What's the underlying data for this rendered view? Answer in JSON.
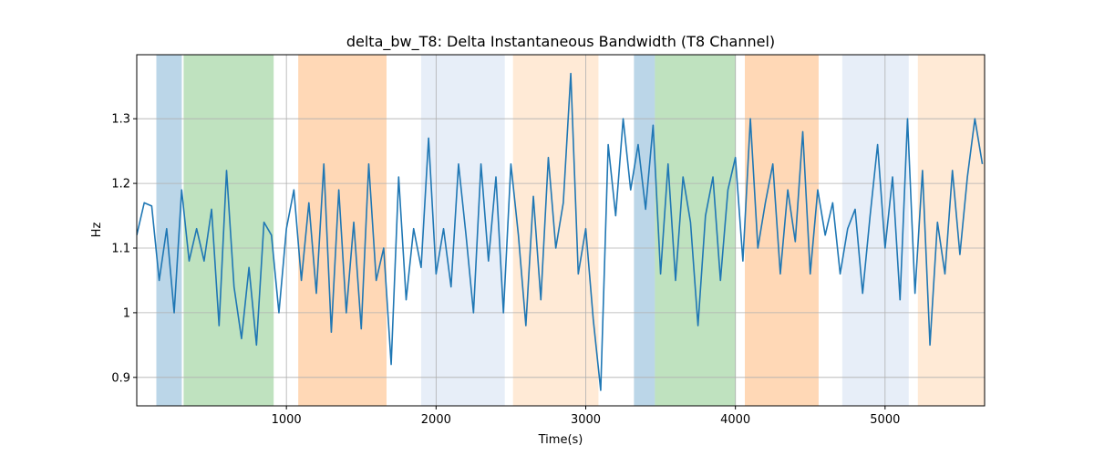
{
  "chart_data": {
    "type": "line",
    "title": "delta_bw_T8: Delta Instantaneous Bandwidth (T8 Channel)",
    "x_label": "Time(s)",
    "y_label": "Hz",
    "x": [
      0,
      50,
      100,
      150,
      200,
      250,
      300,
      350,
      400,
      450,
      500,
      550,
      600,
      650,
      700,
      750,
      800,
      850,
      900,
      950,
      1000,
      1050,
      1100,
      1150,
      1200,
      1250,
      1300,
      1350,
      1400,
      1450,
      1500,
      1550,
      1600,
      1650,
      1700,
      1750,
      1800,
      1850,
      1900,
      1950,
      2000,
      2050,
      2100,
      2150,
      2200,
      2250,
      2300,
      2350,
      2400,
      2450,
      2500,
      2550,
      2600,
      2650,
      2700,
      2750,
      2800,
      2850,
      2900,
      2950,
      3000,
      3050,
      3100,
      3150,
      3200,
      3250,
      3300,
      3350,
      3400,
      3450,
      3500,
      3550,
      3600,
      3650,
      3700,
      3750,
      3800,
      3850,
      3900,
      3950,
      4000,
      4050,
      4100,
      4150,
      4200,
      4250,
      4300,
      4350,
      4400,
      4450,
      4500,
      4550,
      4600,
      4650,
      4700,
      4750,
      4800,
      4850,
      4900,
      4950,
      5000,
      5050,
      5100,
      5150,
      5200,
      5250,
      5300,
      5350,
      5400,
      5450,
      5500,
      5550,
      5600,
      5650
    ],
    "series": [
      {
        "color": "#1f77b4",
        "values": [
          1.12,
          1.17,
          1.165,
          1.05,
          1.13,
          1.0,
          1.19,
          1.08,
          1.13,
          1.08,
          1.16,
          0.98,
          1.22,
          1.04,
          0.96,
          1.07,
          0.95,
          1.14,
          1.12,
          1.0,
          1.13,
          1.19,
          1.05,
          1.17,
          1.03,
          1.23,
          0.97,
          1.19,
          1.0,
          1.14,
          0.975,
          1.23,
          1.05,
          1.1,
          0.92,
          1.21,
          1.02,
          1.13,
          1.07,
          1.27,
          1.06,
          1.13,
          1.04,
          1.23,
          1.12,
          1.0,
          1.23,
          1.08,
          1.21,
          1.0,
          1.23,
          1.12,
          0.98,
          1.18,
          1.02,
          1.24,
          1.1,
          1.17,
          1.37,
          1.06,
          1.13,
          0.99,
          0.88,
          1.26,
          1.15,
          1.3,
          1.19,
          1.26,
          1.16,
          1.29,
          1.06,
          1.23,
          1.05,
          1.21,
          1.14,
          0.98,
          1.15,
          1.21,
          1.05,
          1.19,
          1.24,
          1.08,
          1.3,
          1.1,
          1.17,
          1.23,
          1.06,
          1.19,
          1.11,
          1.28,
          1.06,
          1.19,
          1.12,
          1.17,
          1.06,
          1.13,
          1.16,
          1.03,
          1.15,
          1.26,
          1.1,
          1.21,
          1.02,
          1.3,
          1.03,
          1.22,
          0.95,
          1.14,
          1.06,
          1.22,
          1.09,
          1.21,
          1.3,
          1.23
        ]
      }
    ],
    "spans": [
      {
        "start": 131,
        "end": 301,
        "color": "#1f77b4",
        "opacity": 0.3
      },
      {
        "start": 313,
        "end": 915,
        "color": "#2ca02c",
        "opacity": 0.3
      },
      {
        "start": 1079,
        "end": 1669,
        "color": "#ff7f0e",
        "opacity": 0.3
      },
      {
        "start": 1900,
        "end": 2459,
        "color": "#aec7e8",
        "opacity": 0.3
      },
      {
        "start": 2514,
        "end": 3085,
        "color": "#ffbb78",
        "opacity": 0.3
      },
      {
        "start": 3322,
        "end": 3462,
        "color": "#1f77b4",
        "opacity": 0.3
      },
      {
        "start": 3462,
        "end": 4003,
        "color": "#2ca02c",
        "opacity": 0.3
      },
      {
        "start": 4063,
        "end": 4556,
        "color": "#ff7f0e",
        "opacity": 0.3
      },
      {
        "start": 4714,
        "end": 5158,
        "color": "#aec7e8",
        "opacity": 0.3
      },
      {
        "start": 5219,
        "end": 5665,
        "color": "#ffbb78",
        "opacity": 0.3
      }
    ],
    "xlim": [
      0,
      5665
    ],
    "ylim": [
      0.856,
      1.399
    ],
    "xticks": [
      1000,
      2000,
      3000,
      4000,
      5000
    ],
    "yticks": [
      0.9,
      1.0,
      1.1,
      1.2,
      1.3
    ],
    "grid": true
  }
}
